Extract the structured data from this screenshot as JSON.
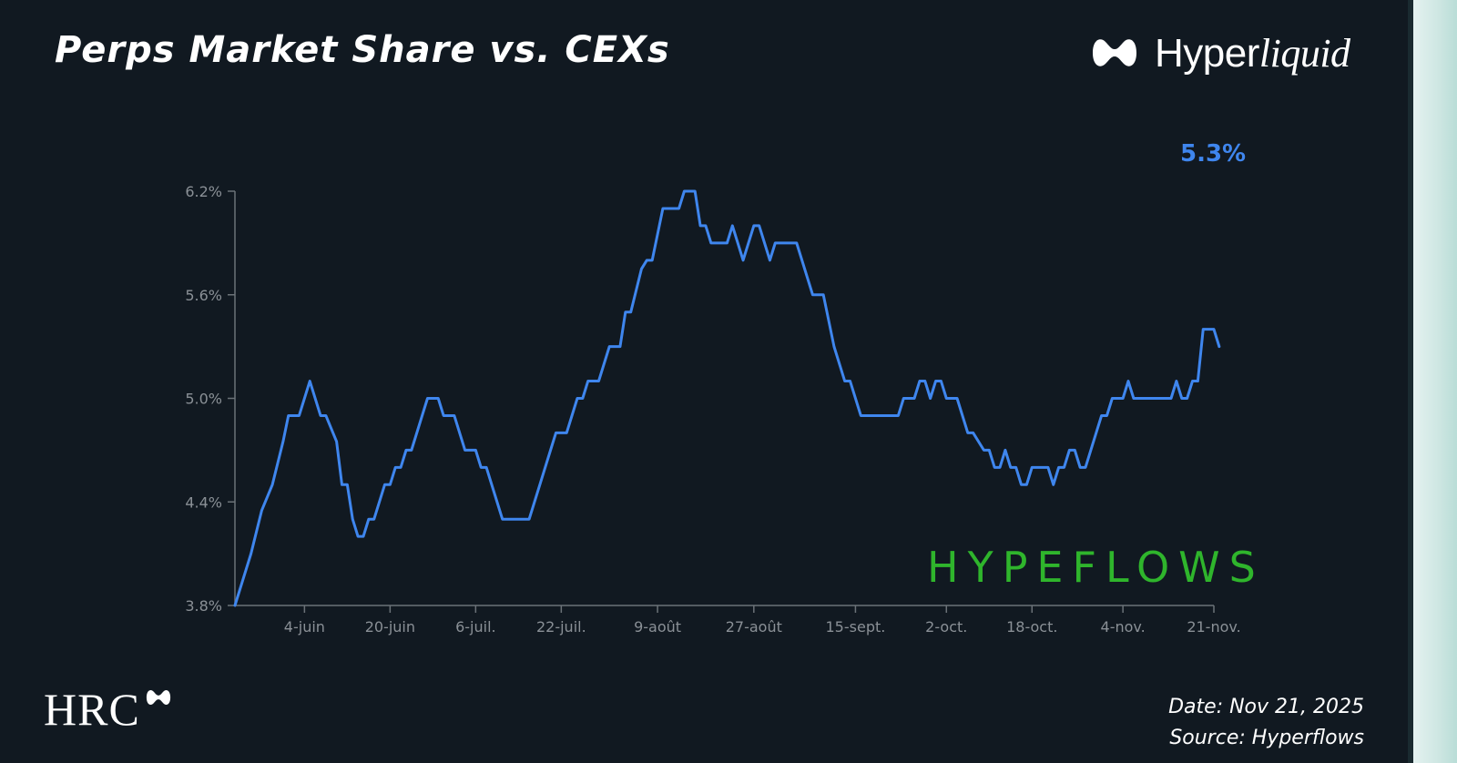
{
  "header": {
    "title": "Perps Market Share vs. CEXs",
    "brand_main": "Hyper",
    "brand_italic": "liquid"
  },
  "callout": "5.3%",
  "watermark": "HYPEFLOWS",
  "logo": {
    "text": "HRC"
  },
  "footer": {
    "date": "Date: Nov 21, 2025",
    "source": "Source: Hyperflows"
  },
  "colors": {
    "line": "#3f86ee",
    "axis": "#6b7278",
    "tick_text": "#8a9096",
    "watermark": "#2fb52c"
  },
  "chart_data": {
    "type": "line",
    "x_tick_labels": [
      "4-juin",
      "20-juin",
      "6-juil.",
      "22-juil.",
      "9-août",
      "27-août",
      "15-sept.",
      "2-oct.",
      "18-oct.",
      "4-nov.",
      "21-nov."
    ],
    "x_tick_dates": [
      "2025-06-04",
      "2025-06-20",
      "2025-07-06",
      "2025-07-22",
      "2025-08-09",
      "2025-08-27",
      "2025-09-15",
      "2025-10-02",
      "2025-10-18",
      "2025-11-04",
      "2025-11-21"
    ],
    "x_range": [
      "2025-05-22",
      "2025-11-21"
    ],
    "y_tick_labels": [
      "6.2%",
      "5.6%",
      "5.0%",
      "4.4%",
      "3.8%"
    ],
    "y_ticks": [
      6.2,
      5.6,
      5.0,
      4.4,
      3.8
    ],
    "ylim": [
      3.8,
      6.2
    ],
    "grid": false,
    "series": [
      {
        "points": [
          [
            "2025-05-22",
            3.8
          ],
          [
            "2025-05-25",
            4.1
          ],
          [
            "2025-05-27",
            4.35
          ],
          [
            "2025-05-29",
            4.5
          ],
          [
            "2025-05-31",
            4.75
          ],
          [
            "2025-06-01",
            4.9
          ],
          [
            "2025-06-03",
            4.9
          ],
          [
            "2025-06-05",
            5.1
          ],
          [
            "2025-06-07",
            4.9
          ],
          [
            "2025-06-08",
            4.9
          ],
          [
            "2025-06-10",
            4.75
          ],
          [
            "2025-06-11",
            4.5
          ],
          [
            "2025-06-12",
            4.5
          ],
          [
            "2025-06-13",
            4.3
          ],
          [
            "2025-06-14",
            4.2
          ],
          [
            "2025-06-15",
            4.2
          ],
          [
            "2025-06-16",
            4.3
          ],
          [
            "2025-06-17",
            4.3
          ],
          [
            "2025-06-19",
            4.5
          ],
          [
            "2025-06-20",
            4.5
          ],
          [
            "2025-06-21",
            4.6
          ],
          [
            "2025-06-22",
            4.6
          ],
          [
            "2025-06-23",
            4.7
          ],
          [
            "2025-06-24",
            4.7
          ],
          [
            "2025-06-26",
            4.9
          ],
          [
            "2025-06-27",
            5.0
          ],
          [
            "2025-06-29",
            5.0
          ],
          [
            "2025-06-30",
            4.9
          ],
          [
            "2025-07-02",
            4.9
          ],
          [
            "2025-07-04",
            4.7
          ],
          [
            "2025-07-06",
            4.7
          ],
          [
            "2025-07-07",
            4.6
          ],
          [
            "2025-07-08",
            4.6
          ],
          [
            "2025-07-10",
            4.4
          ],
          [
            "2025-07-11",
            4.3
          ],
          [
            "2025-07-16",
            4.3
          ],
          [
            "2025-07-18",
            4.5
          ],
          [
            "2025-07-20",
            4.7
          ],
          [
            "2025-07-21",
            4.8
          ],
          [
            "2025-07-23",
            4.8
          ],
          [
            "2025-07-25",
            5.0
          ],
          [
            "2025-07-26",
            5.0
          ],
          [
            "2025-07-27",
            5.1
          ],
          [
            "2025-07-29",
            5.1
          ],
          [
            "2025-07-31",
            5.3
          ],
          [
            "2025-08-02",
            5.3
          ],
          [
            "2025-08-03",
            5.5
          ],
          [
            "2025-08-04",
            5.5
          ],
          [
            "2025-08-06",
            5.75
          ],
          [
            "2025-08-07",
            5.8
          ],
          [
            "2025-08-08",
            5.8
          ],
          [
            "2025-08-10",
            6.1
          ],
          [
            "2025-08-13",
            6.1
          ],
          [
            "2025-08-14",
            6.2
          ],
          [
            "2025-08-16",
            6.2
          ],
          [
            "2025-08-17",
            6.0
          ],
          [
            "2025-08-18",
            6.0
          ],
          [
            "2025-08-19",
            5.9
          ],
          [
            "2025-08-22",
            5.9
          ],
          [
            "2025-08-23",
            6.0
          ],
          [
            "2025-08-25",
            5.8
          ],
          [
            "2025-08-27",
            6.0
          ],
          [
            "2025-08-28",
            6.0
          ],
          [
            "2025-08-30",
            5.8
          ],
          [
            "2025-08-31",
            5.9
          ],
          [
            "2025-09-04",
            5.9
          ],
          [
            "2025-09-06",
            5.7
          ],
          [
            "2025-09-07",
            5.6
          ],
          [
            "2025-09-09",
            5.6
          ],
          [
            "2025-09-11",
            5.3
          ],
          [
            "2025-09-13",
            5.1
          ],
          [
            "2025-09-14",
            5.1
          ],
          [
            "2025-09-16",
            4.9
          ],
          [
            "2025-09-23",
            4.9
          ],
          [
            "2025-09-24",
            5.0
          ],
          [
            "2025-09-26",
            5.0
          ],
          [
            "2025-09-27",
            5.1
          ],
          [
            "2025-09-28",
            5.1
          ],
          [
            "2025-09-29",
            5.0
          ],
          [
            "2025-09-30",
            5.1
          ],
          [
            "2025-10-01",
            5.1
          ],
          [
            "2025-10-02",
            5.0
          ],
          [
            "2025-10-04",
            5.0
          ],
          [
            "2025-10-06",
            4.8
          ],
          [
            "2025-10-07",
            4.8
          ],
          [
            "2025-10-09",
            4.7
          ],
          [
            "2025-10-10",
            4.7
          ],
          [
            "2025-10-11",
            4.6
          ],
          [
            "2025-10-12",
            4.6
          ],
          [
            "2025-10-13",
            4.7
          ],
          [
            "2025-10-14",
            4.6
          ],
          [
            "2025-10-15",
            4.6
          ],
          [
            "2025-10-16",
            4.5
          ],
          [
            "2025-10-17",
            4.5
          ],
          [
            "2025-10-18",
            4.6
          ],
          [
            "2025-10-21",
            4.6
          ],
          [
            "2025-10-22",
            4.5
          ],
          [
            "2025-10-23",
            4.6
          ],
          [
            "2025-10-24",
            4.6
          ],
          [
            "2025-10-25",
            4.7
          ],
          [
            "2025-10-26",
            4.7
          ],
          [
            "2025-10-27",
            4.6
          ],
          [
            "2025-10-28",
            4.6
          ],
          [
            "2025-10-31",
            4.9
          ],
          [
            "2025-11-01",
            4.9
          ],
          [
            "2025-11-02",
            5.0
          ],
          [
            "2025-11-04",
            5.0
          ],
          [
            "2025-11-05",
            5.1
          ],
          [
            "2025-11-06",
            5.0
          ],
          [
            "2025-11-13",
            5.0
          ],
          [
            "2025-11-14",
            5.1
          ],
          [
            "2025-11-15",
            5.0
          ],
          [
            "2025-11-16",
            5.0
          ],
          [
            "2025-11-17",
            5.1
          ],
          [
            "2025-11-18",
            5.1
          ],
          [
            "2025-11-19",
            5.4
          ],
          [
            "2025-11-21",
            5.4
          ],
          [
            "2025-11-22",
            5.3
          ]
        ]
      }
    ]
  }
}
